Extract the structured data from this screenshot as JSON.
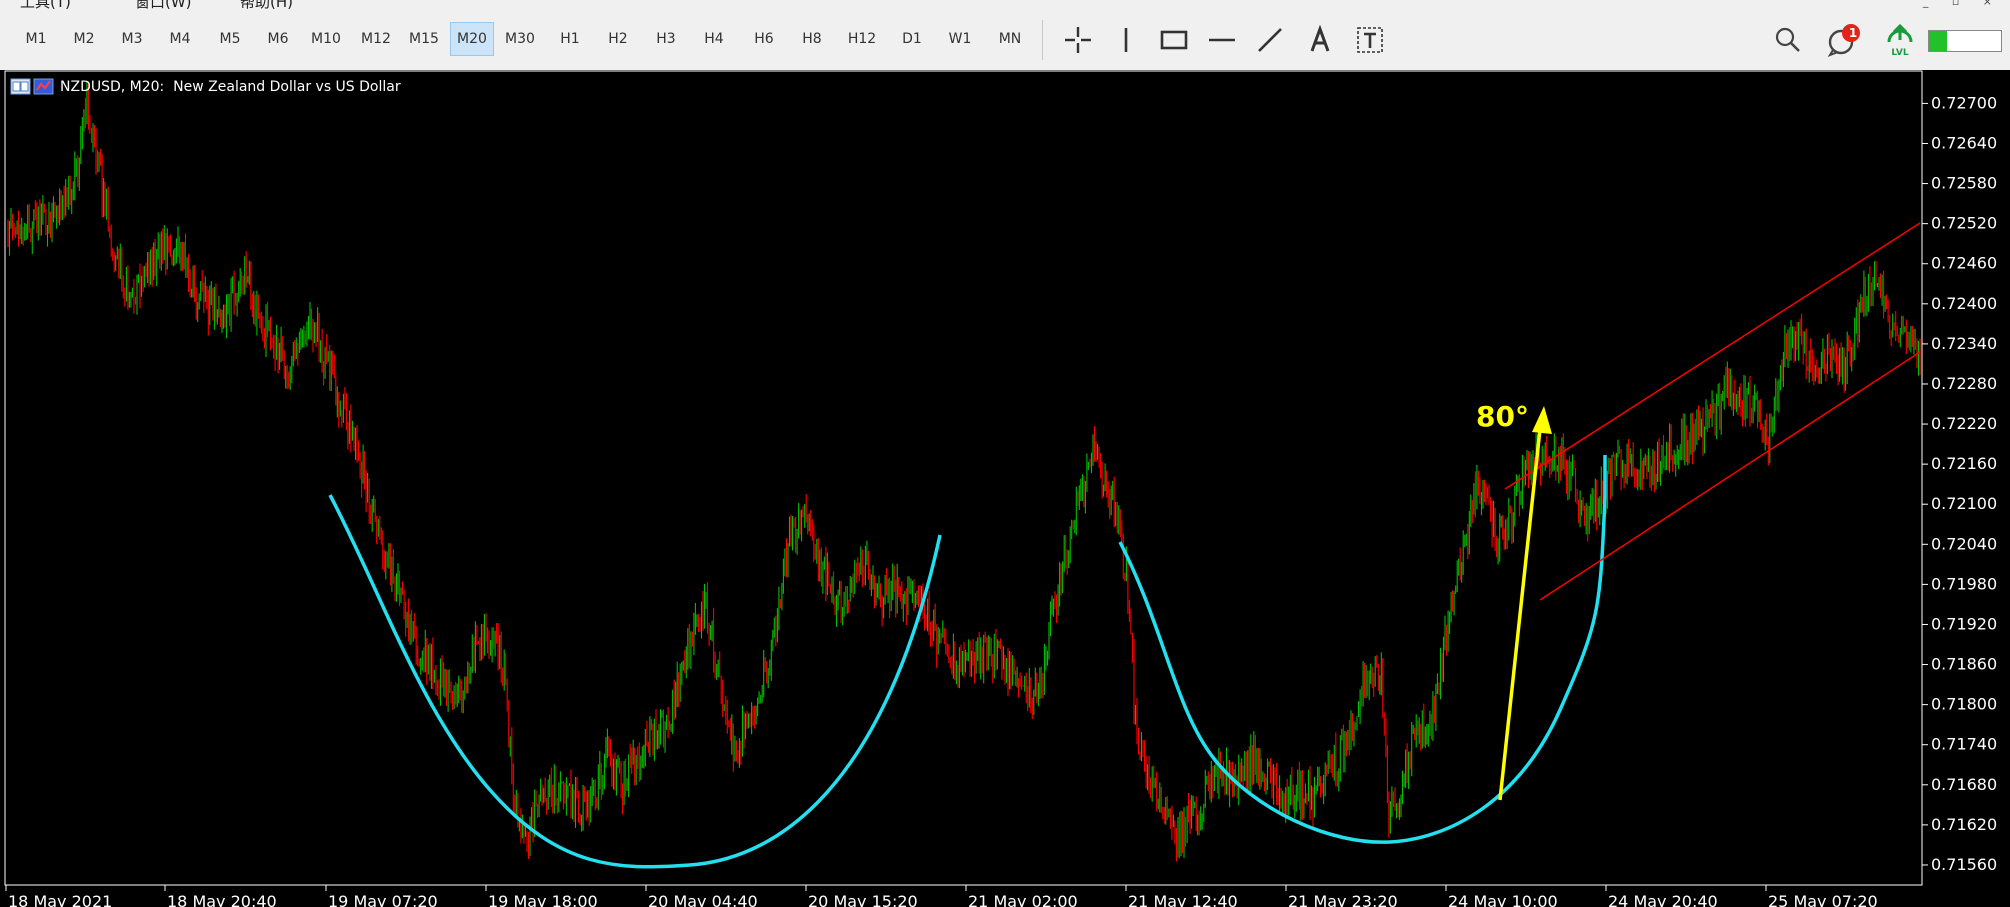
{
  "menu": {
    "items": [
      "工具(T)",
      "窗口(W)",
      "帮助(H)"
    ]
  },
  "toolbar": {
    "timeframes": [
      {
        "label": "M1"
      },
      {
        "label": "M2"
      },
      {
        "label": "M3"
      },
      {
        "label": "M4"
      },
      {
        "label": "M5"
      },
      {
        "label": "M6"
      },
      {
        "label": "M10"
      },
      {
        "label": "M12"
      },
      {
        "label": "M15"
      },
      {
        "label": "M20",
        "active": true
      },
      {
        "label": "M30"
      },
      {
        "label": "H1"
      },
      {
        "label": "H2"
      },
      {
        "label": "H3"
      },
      {
        "label": "H4"
      },
      {
        "label": "H6"
      },
      {
        "label": "H8"
      },
      {
        "label": "H12"
      },
      {
        "label": "D1"
      },
      {
        "label": "W1"
      },
      {
        "label": "MN"
      }
    ],
    "tools": [
      "crosshair-icon",
      "vertical-line-icon",
      "rectangle-icon",
      "horizontal-line-icon",
      "trendline-icon",
      "text-icon",
      "text-label-icon"
    ],
    "notification_count": "1",
    "lvl_label": "LVL",
    "battery_level": 0.25,
    "accent": "#cce4f7"
  },
  "chart": {
    "header": "NZDUSD, M20:  New Zealand Dollar vs US Dollar",
    "annotation_text": "80°",
    "colors": {
      "up": "#00c000",
      "down": "#ff0000",
      "cup": "#22e0f0",
      "arrow": "#ffff00",
      "channel": "#ff0000",
      "background": "#000000",
      "axis_text": "#ffffff"
    }
  },
  "chart_data": {
    "type": "candlestick",
    "symbol": "NZDUSD",
    "timeframe": "M20",
    "y_ticks": [
      "0.72700",
      "0.72640",
      "0.72580",
      "0.72520",
      "0.72460",
      "0.72400",
      "0.72340",
      "0.72280",
      "0.72220",
      "0.72160",
      "0.72100",
      "0.72040",
      "0.71980",
      "0.71920",
      "0.71860",
      "0.71800",
      "0.71740",
      "0.71680",
      "0.71620",
      "0.71560"
    ],
    "x_ticks": [
      "18 May 2021",
      "18 May 20:40",
      "19 May 07:20",
      "19 May 18:00",
      "20 May 04:40",
      "20 May 15:20",
      "21 May 02:00",
      "21 May 12:40",
      "21 May 23:20",
      "24 May 10:00",
      "24 May 20:40",
      "25 May 07:20"
    ],
    "ylim": [
      0.7153,
      0.7275
    ],
    "price_path": [
      {
        "x": 0,
        "y": 0.7251
      },
      {
        "x": 30,
        "y": 0.7253
      },
      {
        "x": 45,
        "y": 0.7259
      },
      {
        "x": 52,
        "y": 0.727
      },
      {
        "x": 58,
        "y": 0.7262
      },
      {
        "x": 70,
        "y": 0.7248
      },
      {
        "x": 82,
        "y": 0.724
      },
      {
        "x": 95,
        "y": 0.7246
      },
      {
        "x": 110,
        "y": 0.725
      },
      {
        "x": 125,
        "y": 0.7241
      },
      {
        "x": 140,
        "y": 0.7238
      },
      {
        "x": 155,
        "y": 0.7244
      },
      {
        "x": 170,
        "y": 0.7236
      },
      {
        "x": 185,
        "y": 0.723
      },
      {
        "x": 200,
        "y": 0.7237
      },
      {
        "x": 215,
        "y": 0.7228
      },
      {
        "x": 230,
        "y": 0.7218
      },
      {
        "x": 245,
        "y": 0.7205
      },
      {
        "x": 260,
        "y": 0.7195
      },
      {
        "x": 270,
        "y": 0.7188
      },
      {
        "x": 285,
        "y": 0.7184
      },
      {
        "x": 295,
        "y": 0.718
      },
      {
        "x": 310,
        "y": 0.7189
      },
      {
        "x": 320,
        "y": 0.7191
      },
      {
        "x": 328,
        "y": 0.7184
      },
      {
        "x": 333,
        "y": 0.7166
      },
      {
        "x": 342,
        "y": 0.716
      },
      {
        "x": 352,
        "y": 0.7167
      },
      {
        "x": 365,
        "y": 0.7167
      },
      {
        "x": 378,
        "y": 0.7164
      },
      {
        "x": 385,
        "y": 0.7166
      },
      {
        "x": 395,
        "y": 0.7172
      },
      {
        "x": 405,
        "y": 0.7168
      },
      {
        "x": 420,
        "y": 0.7174
      },
      {
        "x": 435,
        "y": 0.7177
      },
      {
        "x": 448,
        "y": 0.7188
      },
      {
        "x": 460,
        "y": 0.7195
      },
      {
        "x": 468,
        "y": 0.7185
      },
      {
        "x": 478,
        "y": 0.7173
      },
      {
        "x": 492,
        "y": 0.718
      },
      {
        "x": 505,
        "y": 0.719
      },
      {
        "x": 515,
        "y": 0.7205
      },
      {
        "x": 525,
        "y": 0.7209
      },
      {
        "x": 535,
        "y": 0.7202
      },
      {
        "x": 545,
        "y": 0.7195
      },
      {
        "x": 555,
        "y": 0.7197
      },
      {
        "x": 565,
        "y": 0.7201
      },
      {
        "x": 575,
        "y": 0.7195
      },
      {
        "x": 585,
        "y": 0.7197
      },
      {
        "x": 595,
        "y": 0.7196
      },
      {
        "x": 605,
        "y": 0.7194
      },
      {
        "x": 618,
        "y": 0.7187
      },
      {
        "x": 630,
        "y": 0.7186
      },
      {
        "x": 645,
        "y": 0.7188
      },
      {
        "x": 660,
        "y": 0.7186
      },
      {
        "x": 672,
        "y": 0.7181
      },
      {
        "x": 680,
        "y": 0.7182
      },
      {
        "x": 690,
        "y": 0.7195
      },
      {
        "x": 700,
        "y": 0.7205
      },
      {
        "x": 708,
        "y": 0.7212
      },
      {
        "x": 715,
        "y": 0.7218
      },
      {
        "x": 723,
        "y": 0.7212
      },
      {
        "x": 730,
        "y": 0.721
      },
      {
        "x": 737,
        "y": 0.7199
      },
      {
        "x": 743,
        "y": 0.7178
      },
      {
        "x": 750,
        "y": 0.7169
      },
      {
        "x": 760,
        "y": 0.7166
      },
      {
        "x": 770,
        "y": 0.716
      },
      {
        "x": 780,
        "y": 0.7163
      },
      {
        "x": 790,
        "y": 0.7167
      },
      {
        "x": 800,
        "y": 0.717
      },
      {
        "x": 810,
        "y": 0.7168
      },
      {
        "x": 820,
        "y": 0.7172
      },
      {
        "x": 830,
        "y": 0.7169
      },
      {
        "x": 840,
        "y": 0.7166
      },
      {
        "x": 850,
        "y": 0.7167
      },
      {
        "x": 860,
        "y": 0.7166
      },
      {
        "x": 870,
        "y": 0.717
      },
      {
        "x": 880,
        "y": 0.7173
      },
      {
        "x": 890,
        "y": 0.7179
      },
      {
        "x": 898,
        "y": 0.7186
      },
      {
        "x": 905,
        "y": 0.7184
      },
      {
        "x": 910,
        "y": 0.7165
      },
      {
        "x": 918,
        "y": 0.7168
      },
      {
        "x": 925,
        "y": 0.7174
      },
      {
        "x": 935,
        "y": 0.7176
      },
      {
        "x": 943,
        "y": 0.7183
      },
      {
        "x": 952,
        "y": 0.7197
      },
      {
        "x": 960,
        "y": 0.7203
      },
      {
        "x": 967,
        "y": 0.7212
      },
      {
        "x": 975,
        "y": 0.721
      },
      {
        "x": 982,
        "y": 0.7204
      },
      {
        "x": 990,
        "y": 0.7208
      },
      {
        "x": 1000,
        "y": 0.7215
      },
      {
        "x": 1015,
        "y": 0.7217
      },
      {
        "x": 1025,
        "y": 0.7216
      },
      {
        "x": 1032,
        "y": 0.7213
      },
      {
        "x": 1040,
        "y": 0.7208
      },
      {
        "x": 1050,
        "y": 0.7212
      },
      {
        "x": 1060,
        "y": 0.7216
      },
      {
        "x": 1075,
        "y": 0.7214
      },
      {
        "x": 1085,
        "y": 0.7216
      },
      {
        "x": 1095,
        "y": 0.7218
      },
      {
        "x": 1110,
        "y": 0.722
      },
      {
        "x": 1125,
        "y": 0.7223
      },
      {
        "x": 1135,
        "y": 0.7228
      },
      {
        "x": 1145,
        "y": 0.7226
      },
      {
        "x": 1155,
        "y": 0.7223
      },
      {
        "x": 1160,
        "y": 0.7219
      },
      {
        "x": 1170,
        "y": 0.7232
      },
      {
        "x": 1180,
        "y": 0.7236
      },
      {
        "x": 1190,
        "y": 0.7229
      },
      {
        "x": 1200,
        "y": 0.7232
      },
      {
        "x": 1210,
        "y": 0.7231
      },
      {
        "x": 1220,
        "y": 0.7238
      },
      {
        "x": 1227,
        "y": 0.7243
      },
      {
        "x": 1232,
        "y": 0.7244
      },
      {
        "x": 1240,
        "y": 0.7236
      },
      {
        "x": 1250,
        "y": 0.7237
      },
      {
        "x": 1260,
        "y": 0.7231
      }
    ]
  }
}
